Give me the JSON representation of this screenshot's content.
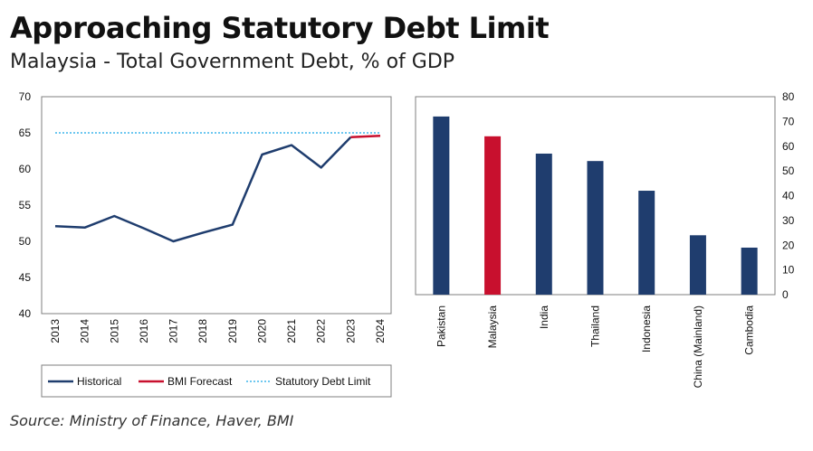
{
  "header": {
    "title": "Approaching Statutory Debt Limit",
    "subtitle": "Malaysia - Total Government Debt, % of GDP"
  },
  "footer": {
    "source": "Source: Ministry of Finance, Haver, BMI"
  },
  "colors": {
    "navy": "#1f3d6e",
    "red": "#c8102e",
    "limit": "#6ec8f0",
    "frame": "#7f7f7f"
  },
  "chart_data": [
    {
      "type": "line",
      "title": "",
      "xlabel": "",
      "ylabel": "",
      "x": [
        "2013",
        "2014",
        "2015",
        "2016",
        "2017",
        "2018",
        "2019",
        "2020",
        "2021",
        "2022",
        "2023",
        "2024"
      ],
      "ylim": [
        40,
        70
      ],
      "yticks": [
        40,
        45,
        50,
        55,
        60,
        65,
        70
      ],
      "grid": false,
      "legend": "bottom",
      "series": [
        {
          "name": "Historical",
          "x": [
            "2013",
            "2014",
            "2015",
            "2016",
            "2017",
            "2018",
            "2019",
            "2020",
            "2021",
            "2022",
            "2023"
          ],
          "values": [
            52.1,
            51.9,
            53.5,
            51.8,
            50.0,
            51.2,
            52.3,
            62.0,
            63.3,
            60.2,
            64.4
          ],
          "color": "#1f3d6e",
          "style": "solid"
        },
        {
          "name": "BMI Forecast",
          "x": [
            "2023",
            "2024"
          ],
          "values": [
            64.4,
            64.6
          ],
          "color": "#c8102e",
          "style": "solid"
        },
        {
          "name": "Statutory Debt Limit",
          "x": [
            "2013",
            "2024"
          ],
          "values": [
            65,
            65
          ],
          "color": "#6ec8f0",
          "style": "dotted"
        }
      ]
    },
    {
      "type": "bar",
      "title": "",
      "xlabel": "",
      "ylabel": "",
      "categories": [
        "Pakistan",
        "Malaysia",
        "India",
        "Thailand",
        "Indonesia",
        "China (Mainland)",
        "Cambodia"
      ],
      "values": [
        72,
        64,
        57,
        54,
        42,
        24,
        19
      ],
      "colors": [
        "#1f3d6e",
        "#c8102e",
        "#1f3d6e",
        "#1f3d6e",
        "#1f3d6e",
        "#1f3d6e",
        "#1f3d6e"
      ],
      "ylim": [
        0,
        80
      ],
      "yticks": [
        0,
        10,
        20,
        30,
        40,
        50,
        60,
        70,
        80
      ],
      "y_axis_side": "right",
      "grid": false
    }
  ]
}
